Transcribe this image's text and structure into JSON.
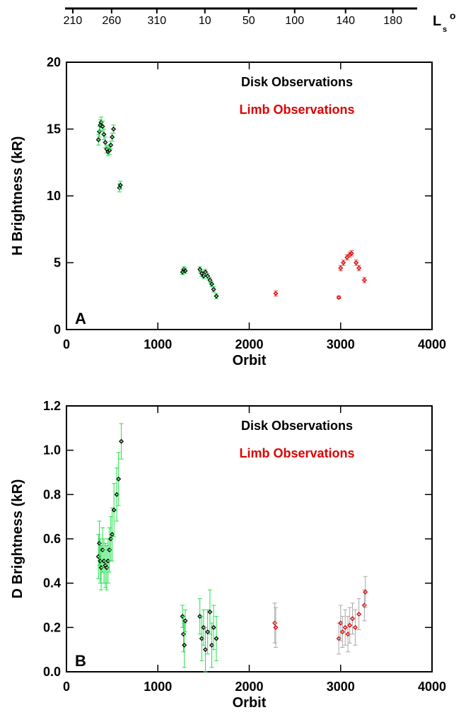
{
  "top_axis": {
    "label": "L",
    "label_sub": "s",
    "label_sup": "o",
    "xlim": [
      -15,
      3840
    ],
    "xticks": [
      {
        "value": 70,
        "label": "210"
      },
      {
        "value": 495,
        "label": "260"
      },
      {
        "value": 990,
        "label": "310"
      },
      {
        "value": 1516,
        "label": "10"
      },
      {
        "value": 1996,
        "label": "50"
      },
      {
        "value": 2499,
        "label": "100"
      },
      {
        "value": 3056,
        "label": "140"
      },
      {
        "value": 3574,
        "label": "180"
      }
    ]
  },
  "chart_data": [
    {
      "type": "scatter",
      "panel_label": "A",
      "xlabel": "Orbit",
      "ylabel": "H Brightness (kR)",
      "xlim": [
        0,
        4000
      ],
      "xticks": [
        0,
        1000,
        2000,
        3000,
        4000
      ],
      "ylim": [
        0,
        20
      ],
      "yticks": [
        0,
        5,
        10,
        15,
        20
      ],
      "legend": "upper right",
      "series": [
        {
          "name": "Disk Observations",
          "color": "#000000",
          "error_color": "#22e04a",
          "x": [
            350,
            360,
            370,
            380,
            395,
            410,
            425,
            440,
            455,
            470,
            485,
            500,
            515,
            580,
            590,
            1270,
            1285,
            1300,
            1460,
            1480,
            1500,
            1520,
            1545,
            1570,
            1590,
            1610,
            1640
          ],
          "values": [
            14.2,
            14.8,
            15.3,
            15.5,
            15.2,
            14.6,
            14.0,
            13.5,
            13.3,
            13.4,
            13.8,
            14.4,
            15.0,
            10.6,
            10.8,
            4.3,
            4.5,
            4.4,
            4.5,
            4.2,
            4.0,
            4.3,
            4.0,
            3.7,
            3.4,
            3.0,
            2.5
          ],
          "errors": [
            0.4,
            0.4,
            0.4,
            0.4,
            0.4,
            0.4,
            0.4,
            0.3,
            0.3,
            0.3,
            0.3,
            0.3,
            0.3,
            0.3,
            0.3,
            0.2,
            0.2,
            0.2,
            0.2,
            0.2,
            0.2,
            0.2,
            0.2,
            0.2,
            0.2,
            0.2,
            0.2
          ]
        },
        {
          "name": "Limb Observations",
          "color": "#e00000",
          "error_color": "#e06060",
          "x": [
            2290,
            2980,
            3000,
            3030,
            3070,
            3100,
            3120,
            3170,
            3200,
            3260
          ],
          "values": [
            2.7,
            2.4,
            4.6,
            5.0,
            5.4,
            5.6,
            5.7,
            5.0,
            4.6,
            3.7
          ],
          "errors": [
            0.2,
            0.1,
            0.2,
            0.2,
            0.2,
            0.2,
            0.2,
            0.2,
            0.2,
            0.2
          ]
        }
      ]
    },
    {
      "type": "scatter",
      "panel_label": "B",
      "xlabel": "Orbit",
      "ylabel": "D Brightness (kR)",
      "xlim": [
        0,
        4000
      ],
      "xticks": [
        0,
        1000,
        2000,
        3000,
        4000
      ],
      "ylim": [
        0,
        1.2
      ],
      "yticks": [
        {
          "value": 0,
          "label": "0.0"
        },
        0.2,
        0.4,
        0.6,
        0.8,
        {
          "value": 1,
          "label": "1.0"
        },
        1.2
      ],
      "legend": "upper right",
      "series": [
        {
          "name": "Disk Observations",
          "color": "#000000",
          "error_color": "#22e04a",
          "x": [
            350,
            360,
            370,
            380,
            395,
            410,
            425,
            440,
            455,
            470,
            485,
            500,
            520,
            550,
            570,
            600,
            1270,
            1280,
            1290,
            1300,
            1460,
            1480,
            1500,
            1520,
            1545,
            1570,
            1590,
            1610,
            1640
          ],
          "values": [
            0.52,
            0.58,
            0.5,
            0.47,
            0.55,
            0.5,
            0.48,
            0.47,
            0.5,
            0.55,
            0.6,
            0.62,
            0.73,
            0.8,
            0.87,
            1.04,
            0.25,
            0.17,
            0.12,
            0.23,
            0.25,
            0.15,
            0.2,
            0.1,
            0.18,
            0.27,
            0.12,
            0.2,
            0.15
          ],
          "errors": [
            0.1,
            0.1,
            0.1,
            0.1,
            0.1,
            0.1,
            0.1,
            0.1,
            0.1,
            0.1,
            0.1,
            0.12,
            0.12,
            0.12,
            0.12,
            0.08,
            0.05,
            0.08,
            0.1,
            0.05,
            0.08,
            0.1,
            0.08,
            0.1,
            0.1,
            0.1,
            0.1,
            0.1,
            0.1
          ]
        },
        {
          "name": "Limb Observations",
          "color": "#e00000",
          "error_color": "#a8a8a8",
          "x": [
            2280,
            2290,
            2980,
            3000,
            3020,
            3050,
            3080,
            3100,
            3130,
            3160,
            3200,
            3260,
            3270
          ],
          "values": [
            0.22,
            0.2,
            0.15,
            0.22,
            0.18,
            0.2,
            0.17,
            0.21,
            0.24,
            0.2,
            0.26,
            0.3,
            0.36
          ],
          "errors": [
            0.09,
            0.09,
            0.07,
            0.08,
            0.07,
            0.08,
            0.08,
            0.08,
            0.07,
            0.08,
            0.07,
            0.07,
            0.07
          ]
        }
      ]
    }
  ]
}
